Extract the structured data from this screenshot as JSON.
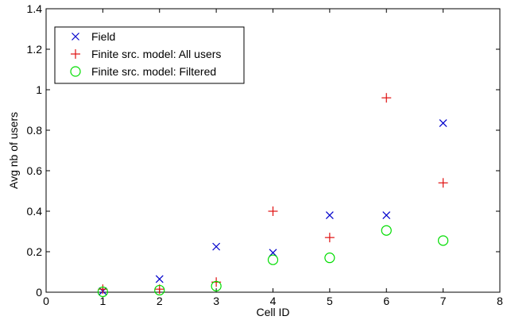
{
  "chart_data": {
    "type": "scatter",
    "title": "",
    "xlabel": "Cell ID",
    "ylabel": "Avg nb of users",
    "xlim": [
      0,
      8
    ],
    "ylim": [
      0,
      1.4
    ],
    "xticks": [
      "0",
      "1",
      "2",
      "3",
      "4",
      "5",
      "6",
      "7",
      "8"
    ],
    "yticks": [
      "0",
      "0.2",
      "0.4",
      "0.6",
      "0.8",
      "1",
      "1.2",
      "1.4"
    ],
    "grid": false,
    "legend_position": "top-left",
    "series": [
      {
        "name": "Field",
        "marker": "x",
        "color": "#0000cc",
        "x": [
          1,
          2,
          3,
          4,
          5,
          6,
          7
        ],
        "y": [
          0.005,
          0.065,
          0.225,
          0.195,
          0.38,
          0.38,
          0.835
        ]
      },
      {
        "name": "Finite src. model: All users",
        "marker": "plus",
        "color": "#e01010",
        "x": [
          1,
          2,
          3,
          4,
          5,
          6,
          7
        ],
        "y": [
          0.015,
          0.015,
          0.05,
          0.4,
          0.27,
          0.96,
          0.54
        ]
      },
      {
        "name": "Finite src. model: Filtered",
        "marker": "circle",
        "color": "#00dd00",
        "x": [
          1,
          2,
          3,
          4,
          5,
          6,
          7
        ],
        "y": [
          0.002,
          0.01,
          0.03,
          0.16,
          0.17,
          0.305,
          0.255
        ]
      }
    ]
  }
}
